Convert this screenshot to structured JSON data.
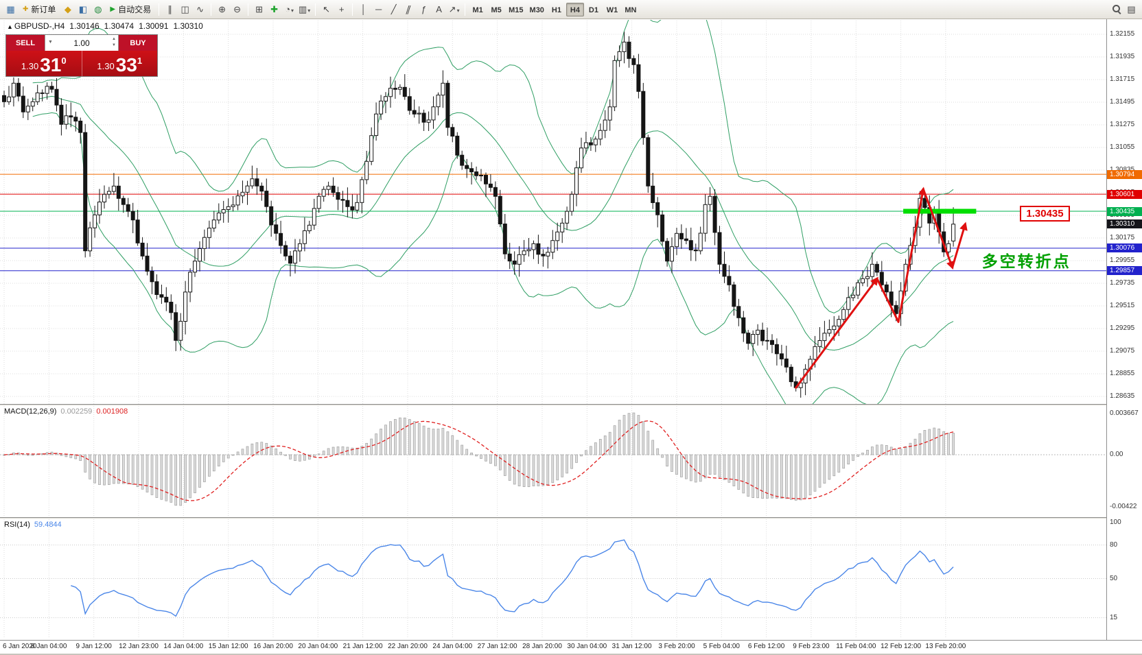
{
  "toolbar": {
    "items": [
      {
        "type": "icon",
        "name": "chart-window-icon",
        "glyph": "▦",
        "color": "#3A6EA5"
      },
      {
        "type": "button",
        "name": "new-order-button",
        "label": "新订单",
        "icon": "✚",
        "icon_color": "#D4A017"
      },
      {
        "type": "icon",
        "name": "profiles-icon",
        "glyph": "◆",
        "color": "#D4A017"
      },
      {
        "type": "icon",
        "name": "market-watch-icon",
        "glyph": "◧",
        "color": "#3A6EA5"
      },
      {
        "type": "icon",
        "name": "navigator-icon",
        "glyph": "◍",
        "color": "#2D8F46"
      },
      {
        "type": "button",
        "name": "autotrading-button",
        "label": "自动交易",
        "icon": "▶",
        "icon_color": "#1FA32E"
      },
      {
        "type": "sep"
      },
      {
        "type": "icon",
        "name": "bar-chart-icon",
        "glyph": "∥",
        "color": "#444444"
      },
      {
        "type": "icon",
        "name": "candlestick-chart-icon",
        "glyph": "◫",
        "color": "#444444"
      },
      {
        "type": "icon",
        "name": "line-chart-icon",
        "glyph": "∿",
        "color": "#444444"
      },
      {
        "type": "sep"
      },
      {
        "type": "icon",
        "name": "zoom-in-icon",
        "glyph": "⊕",
        "color": "#444444"
      },
      {
        "type": "icon",
        "name": "zoom-out-icon",
        "glyph": "⊖",
        "color": "#444444"
      },
      {
        "type": "sep"
      },
      {
        "type": "icon",
        "name": "tile-windows-icon",
        "glyph": "⊞",
        "color": "#444444"
      },
      {
        "type": "icon",
        "name": "indicators-icon",
        "glyph": "✚",
        "color": "#1FA32E"
      },
      {
        "type": "icon",
        "name": "periods-icon",
        "glyph": "◔",
        "color": "#444444",
        "caret": true
      },
      {
        "type": "icon",
        "name": "templates-icon",
        "glyph": "▥",
        "color": "#444444",
        "caret": true
      },
      {
        "type": "sep"
      },
      {
        "type": "icon",
        "name": "cursor-icon",
        "glyph": "↖",
        "color": "#444444"
      },
      {
        "type": "icon",
        "name": "crosshair-icon",
        "glyph": "+",
        "color": "#444444"
      },
      {
        "type": "sep"
      },
      {
        "type": "icon",
        "name": "vertical-line-icon",
        "glyph": "│",
        "color": "#444444"
      },
      {
        "type": "icon",
        "name": "horizontal-line-icon",
        "glyph": "─",
        "color": "#444444"
      },
      {
        "type": "icon",
        "name": "trendline-icon",
        "glyph": "╱",
        "color": "#444444"
      },
      {
        "type": "icon",
        "name": "channel-icon",
        "glyph": "∥",
        "color": "#444444",
        "skew": true
      },
      {
        "type": "icon",
        "name": "fibonacci-icon",
        "glyph": "ƒ",
        "color": "#444444"
      },
      {
        "type": "icon",
        "name": "text-icon",
        "glyph": "A",
        "color": "#444444"
      },
      {
        "type": "icon",
        "name": "arrows-icon",
        "glyph": "↗",
        "color": "#444444",
        "caret": true
      },
      {
        "type": "sep"
      }
    ],
    "timeframes": [
      {
        "label": "M1"
      },
      {
        "label": "M5"
      },
      {
        "label": "M15"
      },
      {
        "label": "M30"
      },
      {
        "label": "H1"
      },
      {
        "label": "H4",
        "active": true
      },
      {
        "label": "D1"
      },
      {
        "label": "W1"
      },
      {
        "label": "MN"
      }
    ],
    "right_items": [
      {
        "type": "magnifier",
        "name": "search-icon"
      },
      {
        "type": "icon",
        "name": "pointer-mode-icon",
        "glyph": "▤",
        "color": "#444444"
      }
    ]
  },
  "trade_panel": {
    "sell_label": "SELL",
    "buy_label": "BUY",
    "volume": "1.00",
    "sell_price": {
      "small": "1.30",
      "big": "31",
      "sup": "0"
    },
    "buy_price": {
      "small": "1.30",
      "big": "33",
      "sup": "1"
    }
  },
  "chart": {
    "title": {
      "marker": "▲",
      "symbol_period": "GBPUSD-,H4",
      "open": "1.30146",
      "high": "1.30474",
      "low": "1.30091",
      "close": "1.30310"
    },
    "price_axis_ticks": [
      "1.32155",
      "1.31935",
      "1.31715",
      "1.31495",
      "1.31275",
      "1.31055",
      "1.30835",
      "1.30615",
      "1.30395",
      "1.30175",
      "1.29955",
      "1.29735",
      "1.29515",
      "1.29295",
      "1.29075",
      "1.28855",
      "1.28635"
    ],
    "levels": [
      {
        "name": "resistance-line-1",
        "value": 1.30794,
        "label": "1.30794",
        "color": "#F06A00"
      },
      {
        "name": "resistance-line-2",
        "value": 1.30601,
        "label": "1.30601",
        "color": "#E00000"
      },
      {
        "name": "pivot-line-green",
        "value": 1.30435,
        "label": "1.30435",
        "color": "#00B050"
      },
      {
        "name": "support-line-1",
        "value": 1.30076,
        "label": "1.30076",
        "color": "#2222CC"
      },
      {
        "name": "support-line-2",
        "value": 1.29857,
        "label": "1.29857",
        "color": "#2222CC"
      }
    ],
    "current_price": {
      "value": 1.3031,
      "label": "1.30310",
      "color": "#15151A"
    },
    "highlight": {
      "value": 1.30435,
      "i1": 188.5,
      "i2": 203.8,
      "color": "#00DE00"
    },
    "zigzag": {
      "color": "#E01010",
      "points": [
        [
          166,
          1.2872
        ],
        [
          183,
          1.2978
        ],
        [
          187.5,
          1.2936
        ],
        [
          192.7,
          1.3065
        ],
        [
          198.8,
          1.2989
        ],
        [
          201.5,
          1.3031
        ]
      ],
      "arrow_legs": [
        1,
        3,
        4,
        5
      ]
    },
    "annotation": {
      "text": "多空转折点",
      "color": "#00A000",
      "i": 205,
      "price": 1.2999
    },
    "price_box": {
      "text": "1.30435",
      "i": 213,
      "price": 1.30415,
      "color": "#E00000"
    }
  },
  "macd": {
    "label": "MACD(12,26,9)",
    "main_value": "0.002259",
    "signal_value": "0.001908",
    "ticks": [
      "0.003667",
      "0.00",
      "-0.00422"
    ],
    "colors": {
      "hist": "#DCDCDC",
      "hist_border": "#A0A0A0",
      "signal": "#E02020"
    }
  },
  "rsi": {
    "label": "RSI(14)",
    "value": "59.4844",
    "ticks": [
      "100",
      "80",
      "50",
      "15"
    ],
    "levels": [
      80,
      50,
      15
    ],
    "color": "#4A86E8"
  },
  "chart_data": {
    "type": "candlestick",
    "symbol": "GBPUSD-",
    "timeframe": "H4",
    "num_candles": 200,
    "ylim": [
      1.28635,
      1.32155
    ],
    "last_candle": {
      "open": 1.30146,
      "high": 1.30474,
      "low": 1.30091,
      "close": 1.3031
    },
    "close_path_anchors": [
      [
        0,
        1.315
      ],
      [
        2,
        1.3168
      ],
      [
        4,
        1.314
      ],
      [
        6,
        1.315
      ],
      [
        8,
        1.3158
      ],
      [
        10,
        1.3162
      ],
      [
        12,
        1.3128
      ],
      [
        14,
        1.3135
      ],
      [
        16,
        1.312
      ],
      [
        17,
        1.3005
      ],
      [
        19,
        1.304
      ],
      [
        21,
        1.306
      ],
      [
        23,
        1.3068
      ],
      [
        25,
        1.305
      ],
      [
        27,
        1.3035
      ],
      [
        29,
        1.3
      ],
      [
        31,
        1.2975
      ],
      [
        33,
        1.296
      ],
      [
        35,
        1.2945
      ],
      [
        36,
        1.2918
      ],
      [
        38,
        1.2965
      ],
      [
        40,
        1.2995
      ],
      [
        42,
        1.3018
      ],
      [
        44,
        1.3035
      ],
      [
        47,
        1.3048
      ],
      [
        50,
        1.3062
      ],
      [
        52,
        1.3075
      ],
      [
        53,
        1.3068
      ],
      [
        55,
        1.3048
      ],
      [
        57,
        1.3022
      ],
      [
        59,
        1.3
      ],
      [
        60,
        1.2993
      ],
      [
        62,
        1.3012
      ],
      [
        64,
        1.303
      ],
      [
        66,
        1.3058
      ],
      [
        68,
        1.3068
      ],
      [
        70,
        1.3055
      ],
      [
        72,
        1.3048
      ],
      [
        74,
        1.3052
      ],
      [
        76,
        1.3092
      ],
      [
        78,
        1.3138
      ],
      [
        80,
        1.3155
      ],
      [
        82,
        1.3162
      ],
      [
        84,
        1.3155
      ],
      [
        86,
        1.3138
      ],
      [
        88,
        1.313
      ],
      [
        90,
        1.3145
      ],
      [
        92,
        1.3168
      ],
      [
        93,
        1.3125
      ],
      [
        95,
        1.3098
      ],
      [
        97,
        1.3085
      ],
      [
        99,
        1.3078
      ],
      [
        101,
        1.307
      ],
      [
        103,
        1.3058
      ],
      [
        105,
        1.3002
      ],
      [
        107,
        1.2992
      ],
      [
        109,
        1.3005
      ],
      [
        111,
        1.3012
      ],
      [
        113,
        1.3
      ],
      [
        115,
        1.3015
      ],
      [
        117,
        1.3032
      ],
      [
        119,
        1.306
      ],
      [
        121,
        1.3105
      ],
      [
        123,
        1.3108
      ],
      [
        125,
        1.3122
      ],
      [
        127,
        1.3145
      ],
      [
        128,
        1.319
      ],
      [
        130,
        1.3208
      ],
      [
        131,
        1.3192
      ],
      [
        132,
        1.3186
      ],
      [
        133,
        1.316
      ],
      [
        134,
        1.3115
      ],
      [
        135,
        1.3068
      ],
      [
        137,
        1.304
      ],
      [
        139,
        1.2995
      ],
      [
        141,
        1.3022
      ],
      [
        143,
        1.3015
      ],
      [
        145,
        1.3005
      ],
      [
        147,
        1.305
      ],
      [
        148,
        1.3058
      ],
      [
        150,
        1.2992
      ],
      [
        152,
        1.2972
      ],
      [
        154,
        1.294
      ],
      [
        156,
        1.2915
      ],
      [
        158,
        1.2928
      ],
      [
        160,
        1.2918
      ],
      [
        162,
        1.2905
      ],
      [
        164,
        1.2892
      ],
      [
        166,
        1.2872
      ],
      [
        168,
        1.289
      ],
      [
        170,
        1.2912
      ],
      [
        172,
        1.2925
      ],
      [
        174,
        1.2932
      ],
      [
        176,
        1.2948
      ],
      [
        178,
        1.2962
      ],
      [
        180,
        1.2978
      ],
      [
        182,
        1.2992
      ],
      [
        184,
        1.2972
      ],
      [
        186,
        1.2952
      ],
      [
        187,
        1.2944
      ],
      [
        189,
        1.2992
      ],
      [
        191,
        1.3028
      ],
      [
        192,
        1.3056
      ],
      [
        194,
        1.3032
      ],
      [
        195,
        1.3042
      ],
      [
        197,
        1.3004
      ],
      [
        198,
        1.3012
      ],
      [
        199,
        1.3031
      ]
    ],
    "x_labels": [
      "6 Jan 2020",
      "8 Jan 04:00",
      "9 Jan 12:00",
      "12 Jan 23:00",
      "14 Jan 04:00",
      "15 Jan 12:00",
      "16 Jan 20:00",
      "20 Jan 04:00",
      "21 Jan 12:00",
      "22 Jan 20:00",
      "24 Jan 04:00",
      "27 Jan 12:00",
      "28 Jan 20:00",
      "30 Jan 04:00",
      "31 Jan 12:00",
      "3 Feb 20:00",
      "5 Feb 04:00",
      "6 Feb 12:00",
      "9 Feb 23:00",
      "11 Feb 04:00",
      "12 Feb 12:00",
      "13 Feb 20:00"
    ],
    "indicators": [
      "Bollinger Bands(20,2)",
      "MACD(12,26,9)",
      "RSI(14)"
    ],
    "horizontal_levels": [
      1.30794,
      1.30601,
      1.30435,
      1.30076,
      1.29857
    ]
  }
}
